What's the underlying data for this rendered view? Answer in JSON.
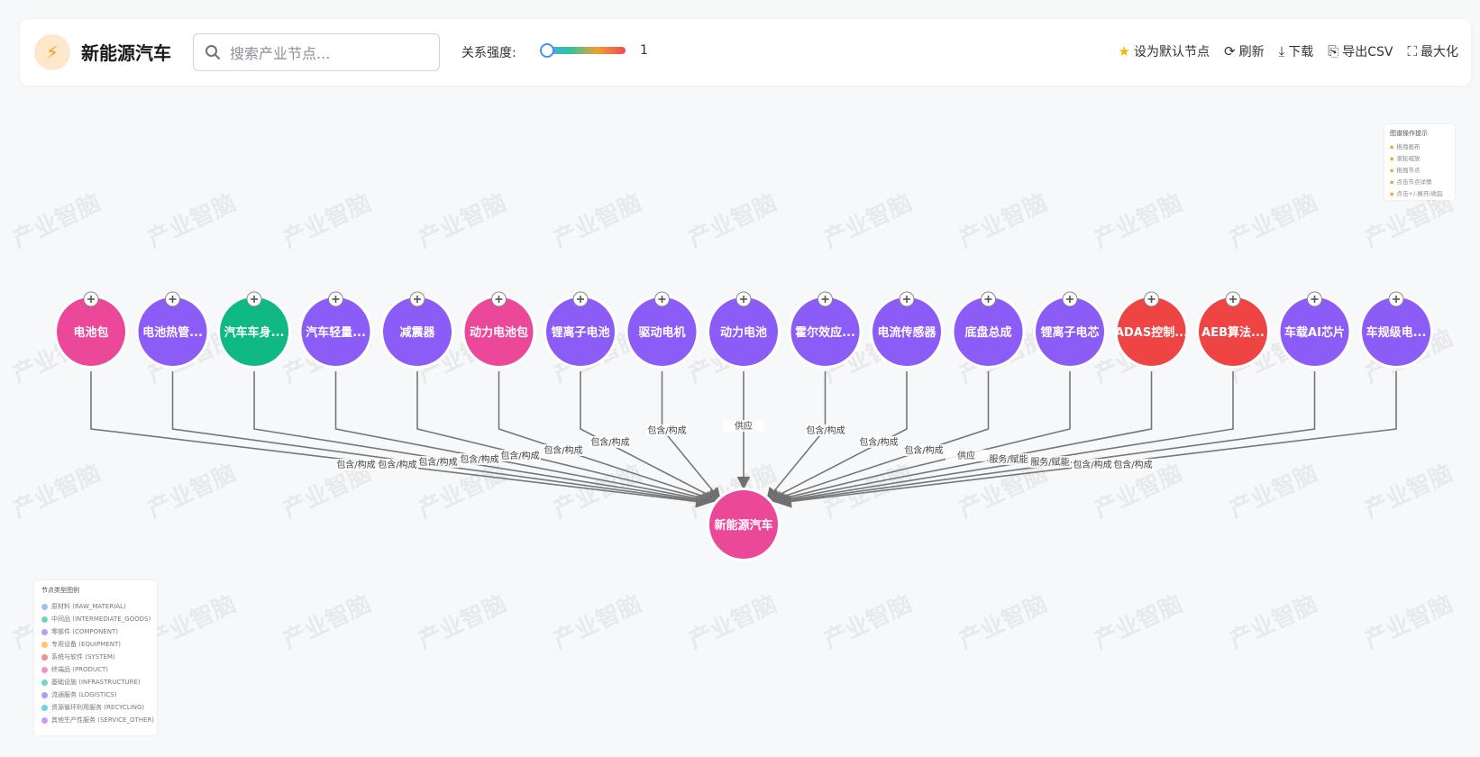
{
  "header": {
    "title": "新能源汽车",
    "search_placeholder": "搜索产业节点...",
    "strength_label": "关系强度:",
    "strength_value": "1",
    "actions": [
      {
        "label": "设为默认节点",
        "icon": "star-icon"
      },
      {
        "label": "刷新",
        "icon": "refresh-icon"
      },
      {
        "label": "下载",
        "icon": "download-icon"
      },
      {
        "label": "导出CSV",
        "icon": "export-csv-icon"
      },
      {
        "label": "最大化",
        "icon": "maximize-icon"
      }
    ]
  },
  "watermark": "产业智脑",
  "hint": {
    "title": "图谱操作提示",
    "items": [
      "拖拽画布",
      "滚轮缩放",
      "拖拽节点",
      "点击节点详情",
      "点击+/-展开/收起"
    ]
  },
  "legend": {
    "title": "节点类型图例",
    "items": [
      {
        "label": "原材料 (RAW_MATERIAL)",
        "color": "#5b8ff9"
      },
      {
        "label": "中间品 (INTERMEDIATE_GOODS)",
        "color": "#10b981"
      },
      {
        "label": "零部件 (COMPONENT)",
        "color": "#8b5cf6"
      },
      {
        "label": "专用设备 (EQUIPMENT)",
        "color": "#f59e0b"
      },
      {
        "label": "系统与软件 (SYSTEM)",
        "color": "#ef4444"
      },
      {
        "label": "终端品 (PRODUCT)",
        "color": "#ec4899"
      },
      {
        "label": "基础设施 (INFRASTRUCTURE)",
        "color": "#14b8a6"
      },
      {
        "label": "流通服务 (LOGISTICS)",
        "color": "#6366f1"
      },
      {
        "label": "资源循环利用服务 (RECYCLING)",
        "color": "#06b6d4"
      },
      {
        "label": "其他生产性服务 (SERVICE_OTHER)",
        "color": "#a855f7"
      }
    ]
  },
  "graph": {
    "center": {
      "label": "新能源汽车",
      "color": "#ec4899"
    },
    "nodes": [
      {
        "label": "电池包",
        "color": "#ec4899",
        "edge": "包含/构成"
      },
      {
        "label": "电池热管...",
        "color": "#8b5cf6",
        "edge": "包含/构成"
      },
      {
        "label": "汽车车身...",
        "color": "#10b981",
        "edge": "包含/构成"
      },
      {
        "label": "汽车轻量...",
        "color": "#8b5cf6",
        "edge": "包含/构成"
      },
      {
        "label": "减震器",
        "color": "#8b5cf6",
        "edge": "包含/构成"
      },
      {
        "label": "动力电池包",
        "color": "#ec4899",
        "edge": "包含/构成"
      },
      {
        "label": "锂离子电池",
        "color": "#8b5cf6",
        "edge": "包含/构成"
      },
      {
        "label": "驱动电机",
        "color": "#8b5cf6",
        "edge": "包含/构成"
      },
      {
        "label": "动力电池",
        "color": "#8b5cf6",
        "edge": "供应"
      },
      {
        "label": "霍尔效应...",
        "color": "#8b5cf6",
        "edge": "包含/构成"
      },
      {
        "label": "电流传感器",
        "color": "#8b5cf6",
        "edge": "包含/构成"
      },
      {
        "label": "底盘总成",
        "color": "#8b5cf6",
        "edge": "包含/构成"
      },
      {
        "label": "锂离子电芯",
        "color": "#8b5cf6",
        "edge": "供应"
      },
      {
        "label": "ADAS控制...",
        "color": "#ef4444",
        "edge": "服务/赋能"
      },
      {
        "label": "AEB算法...",
        "color": "#ef4444",
        "edge": "服务/赋能"
      },
      {
        "label": "车载AI芯片",
        "color": "#8b5cf6",
        "edge": "包含/构成"
      },
      {
        "label": "车规级电...",
        "color": "#8b5cf6",
        "edge": "包含/构成"
      }
    ]
  }
}
